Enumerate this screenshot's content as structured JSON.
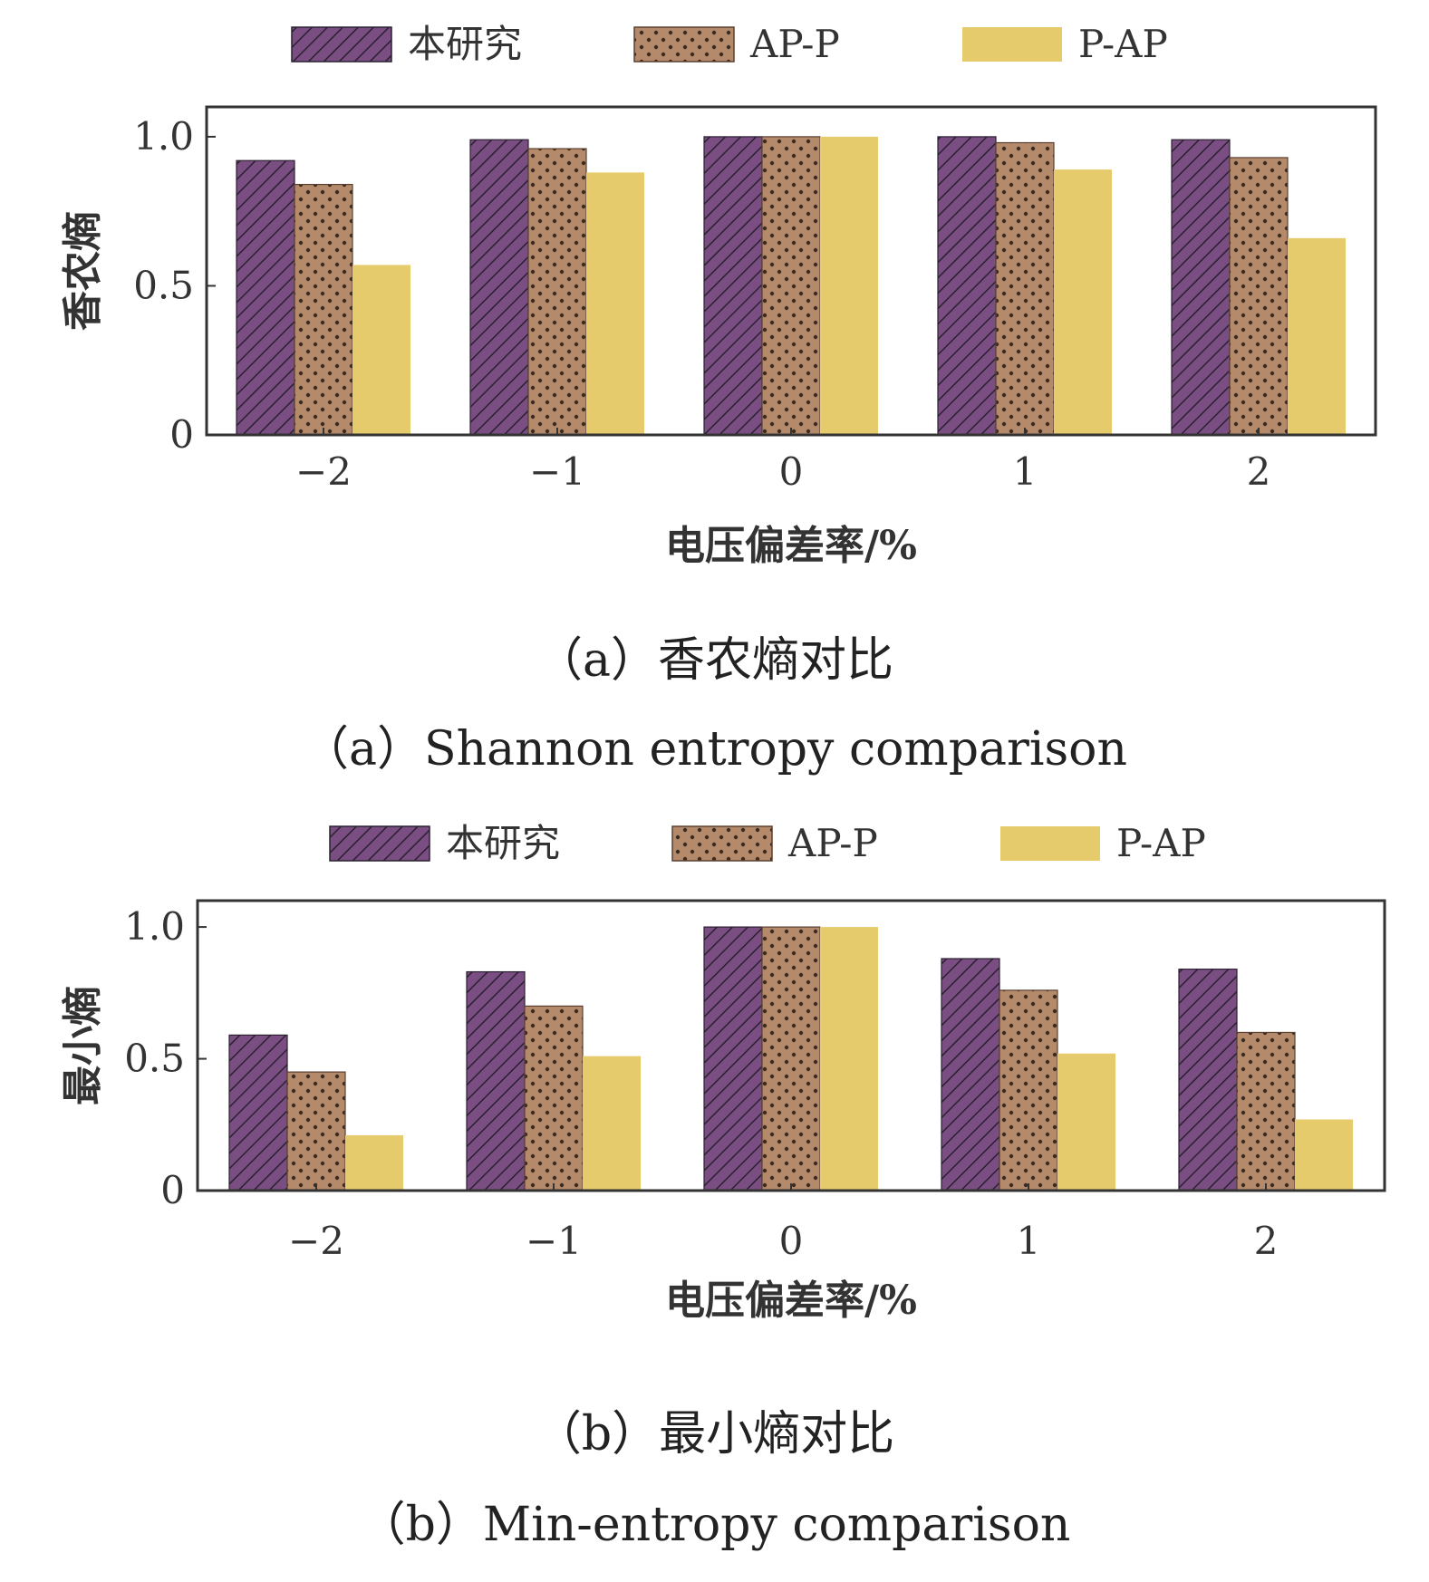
{
  "colors": {
    "purple": "#7a4e82",
    "brown": "#b48a6a",
    "yellow": "#e6cb6c"
  },
  "chart_data": [
    {
      "type": "bar",
      "title": "（a）香农熵对比",
      "subtitle": "（a）Shannon entropy comparison",
      "xlabel": "电压偏差率/%",
      "ylabel": "香农熵",
      "categories": [
        "−2",
        "−1",
        "0",
        "1",
        "2"
      ],
      "ylim": [
        0,
        1.1
      ],
      "yticks": [
        0,
        0.5,
        1.0
      ],
      "ytick_labels": [
        "0",
        "0.5",
        "1.0"
      ],
      "legend_position": "top",
      "series": [
        {
          "name": "本研究",
          "values": [
            0.92,
            0.99,
            1.0,
            1.0,
            0.99
          ],
          "pattern": "hatch"
        },
        {
          "name": "AP-P",
          "values": [
            0.84,
            0.96,
            1.0,
            0.98,
            0.93
          ],
          "pattern": "dots"
        },
        {
          "name": "P-AP",
          "values": [
            0.57,
            0.88,
            1.0,
            0.89,
            0.66
          ],
          "pattern": "solid"
        }
      ]
    },
    {
      "type": "bar",
      "title": "（b）最小熵对比",
      "subtitle": "（b）Min-entropy comparison",
      "xlabel": "电压偏差率/%",
      "ylabel": "最小熵",
      "categories": [
        "−2",
        "−1",
        "0",
        "1",
        "2"
      ],
      "ylim": [
        0,
        1.1
      ],
      "yticks": [
        0,
        0.5,
        1.0
      ],
      "ytick_labels": [
        "0",
        "0.5",
        "1.0"
      ],
      "legend_position": "top",
      "series": [
        {
          "name": "本研究",
          "values": [
            0.59,
            0.83,
            1.0,
            0.88,
            0.84
          ],
          "pattern": "hatch"
        },
        {
          "name": "AP-P",
          "values": [
            0.45,
            0.7,
            1.0,
            0.76,
            0.6
          ],
          "pattern": "dots"
        },
        {
          "name": "P-AP",
          "values": [
            0.21,
            0.51,
            1.0,
            0.52,
            0.27
          ],
          "pattern": "solid"
        }
      ]
    }
  ]
}
